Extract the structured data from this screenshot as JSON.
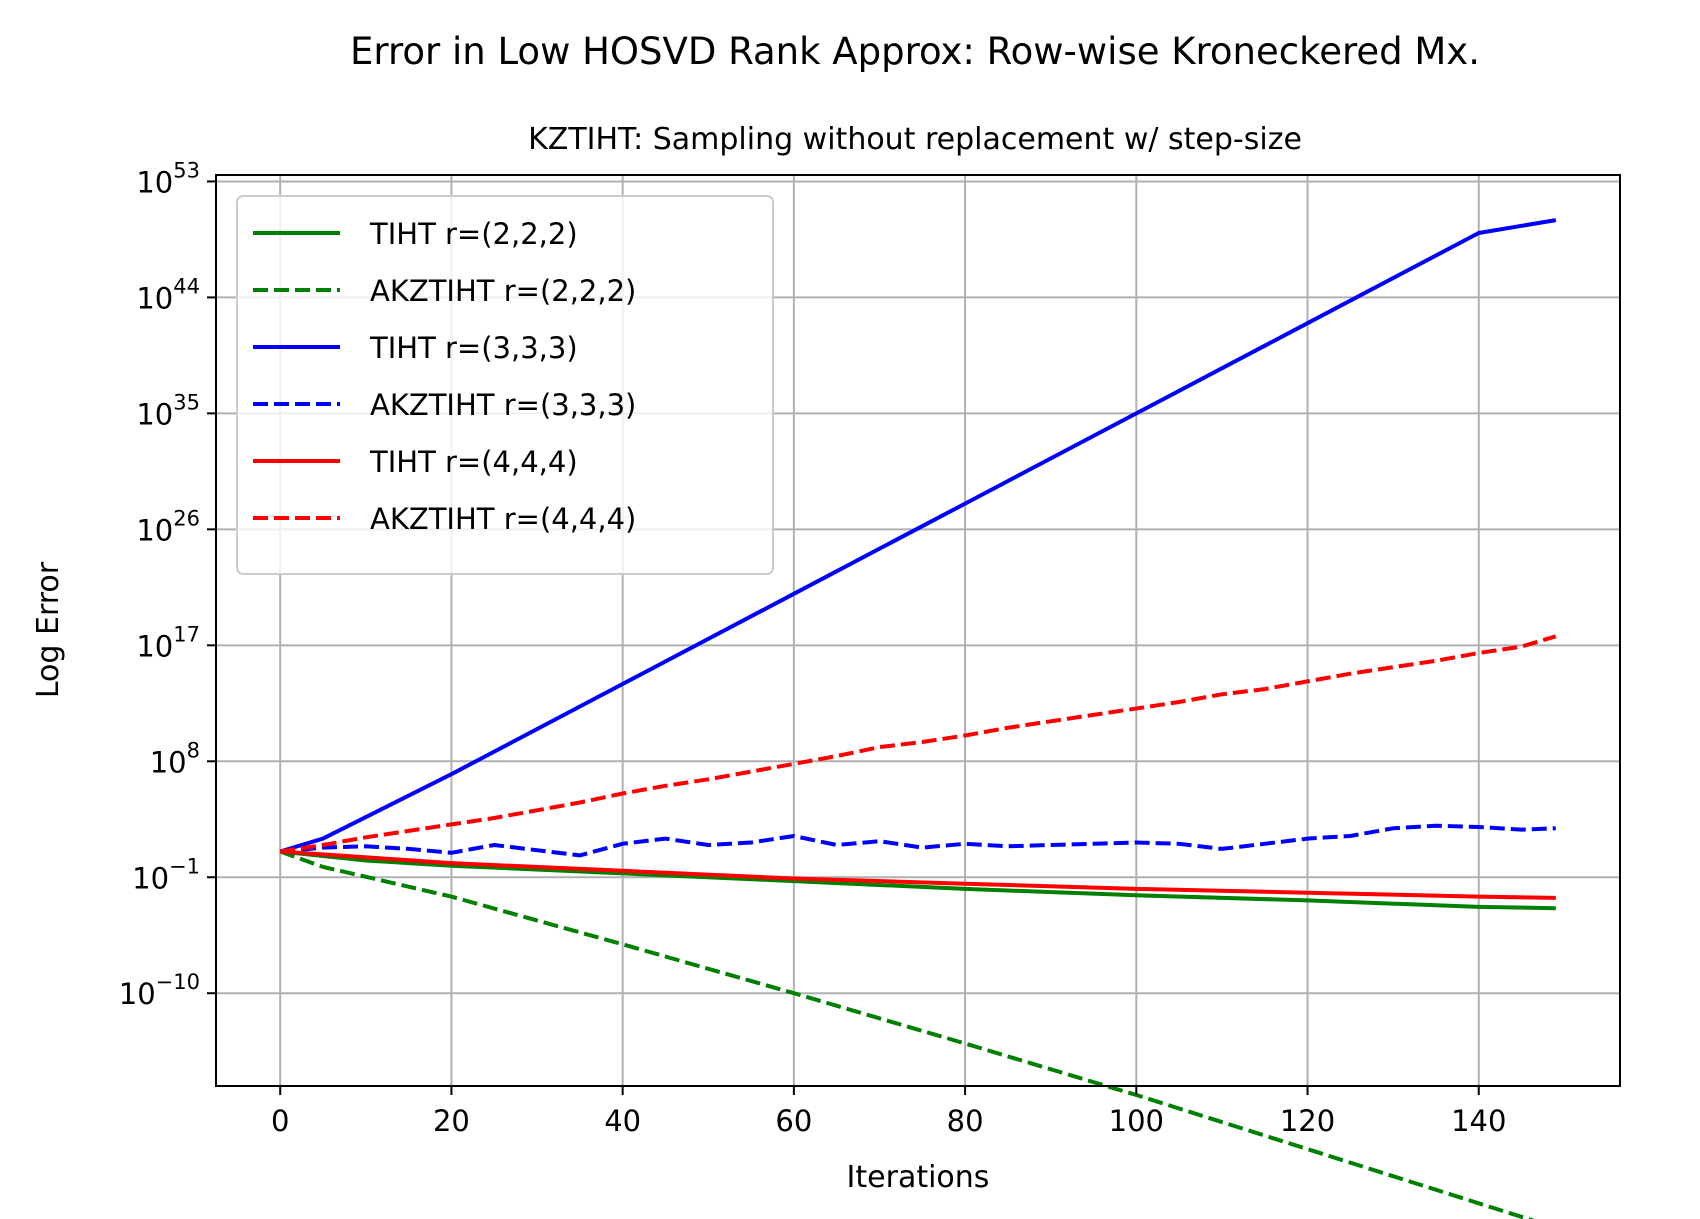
{
  "chart_data": {
    "type": "line",
    "title": "Error in Low HOSVD Rank Approx: Row-wise Kroneckered Mx.",
    "subtitle": "KZTIHT: Sampling without replacement w/ step-size",
    "xlabel": "Iterations",
    "ylabel": "Log Error",
    "yscale": "log",
    "xlim": [
      -7.5,
      156.5
    ],
    "ylim_exponent": [
      -17.2,
      53.5
    ],
    "xticks": [
      0,
      20,
      40,
      60,
      80,
      100,
      120,
      140
    ],
    "yticks": [
      {
        "base": "10",
        "exp": "53",
        "value": 53
      },
      {
        "base": "10",
        "exp": "44",
        "value": 44
      },
      {
        "base": "10",
        "exp": "35",
        "value": 35
      },
      {
        "base": "10",
        "exp": "26",
        "value": 26
      },
      {
        "base": "10",
        "exp": "17",
        "value": 17
      },
      {
        "base": "10",
        "exp": "8",
        "value": 8
      },
      {
        "base": "10",
        "exp": "−1",
        "value": -1
      },
      {
        "base": "10",
        "exp": "−10",
        "value": -10
      }
    ],
    "grid": true,
    "legend_position": "upper-left",
    "series": [
      {
        "name": "TIHT r=(2,2,2)",
        "color": "#008000",
        "dash": "solid",
        "x": [
          0,
          10,
          20,
          40,
          60,
          80,
          100,
          120,
          140,
          149
        ],
        "log10_y": [
          1.0,
          0.3,
          -0.1,
          -0.7,
          -1.3,
          -1.9,
          -2.4,
          -2.8,
          -3.3,
          -3.4
        ]
      },
      {
        "name": "AKZTIHT r=(2,2,2)",
        "color": "#008000",
        "dash": "dashed",
        "x": [
          0,
          5,
          20,
          40,
          60,
          80,
          100,
          120,
          140,
          149
        ],
        "log10_y": [
          1.0,
          -0.2,
          -2.5,
          -6.2,
          -10.0,
          -13.9,
          -17.9,
          -22.1,
          -26.3,
          -28.2
        ]
      },
      {
        "name": "TIHT r=(3,3,3)",
        "color": "#0000ff",
        "dash": "solid",
        "x": [
          0,
          5,
          20,
          40,
          60,
          80,
          100,
          120,
          140,
          149
        ],
        "log10_y": [
          1.0,
          2.0,
          7.0,
          14.0,
          21.0,
          28.0,
          35.0,
          42.0,
          49.0,
          50.0
        ]
      },
      {
        "name": "AKZTIHT r=(3,3,3)",
        "color": "#0000ff",
        "dash": "dashed",
        "x": [
          0,
          5,
          10,
          15,
          20,
          25,
          30,
          35,
          40,
          45,
          50,
          55,
          60,
          65,
          70,
          75,
          80,
          85,
          90,
          95,
          100,
          105,
          110,
          115,
          120,
          125,
          130,
          135,
          140,
          145,
          149
        ],
        "log10_y": [
          1.0,
          1.3,
          1.4,
          1.2,
          0.9,
          1.5,
          1.1,
          0.7,
          1.6,
          2.0,
          1.5,
          1.7,
          2.2,
          1.5,
          1.8,
          1.3,
          1.6,
          1.4,
          1.5,
          1.6,
          1.7,
          1.6,
          1.2,
          1.6,
          2.0,
          2.2,
          2.8,
          3.0,
          2.9,
          2.7,
          2.8
        ]
      },
      {
        "name": "TIHT r=(4,4,4)",
        "color": "#ff0000",
        "dash": "solid",
        "x": [
          0,
          20,
          40,
          60,
          80,
          100,
          120,
          140,
          149
        ],
        "log10_y": [
          1.0,
          0.1,
          -0.5,
          -1.1,
          -1.5,
          -1.9,
          -2.2,
          -2.5,
          -2.6
        ]
      },
      {
        "name": "AKZTIHT r=(4,4,4)",
        "color": "#ff0000",
        "dash": "dashed",
        "x": [
          0,
          5,
          10,
          15,
          20,
          25,
          30,
          35,
          40,
          45,
          50,
          55,
          60,
          65,
          70,
          75,
          80,
          85,
          90,
          95,
          100,
          105,
          110,
          115,
          120,
          125,
          130,
          135,
          140,
          145,
          149
        ],
        "log10_y": [
          1.0,
          1.5,
          2.1,
          2.6,
          3.1,
          3.6,
          4.2,
          4.8,
          5.5,
          6.1,
          6.6,
          7.2,
          7.8,
          8.4,
          9.1,
          9.5,
          10.0,
          10.6,
          11.1,
          11.6,
          12.1,
          12.6,
          13.2,
          13.6,
          14.2,
          14.8,
          15.3,
          15.8,
          16.4,
          16.9,
          17.7
        ]
      }
    ]
  }
}
